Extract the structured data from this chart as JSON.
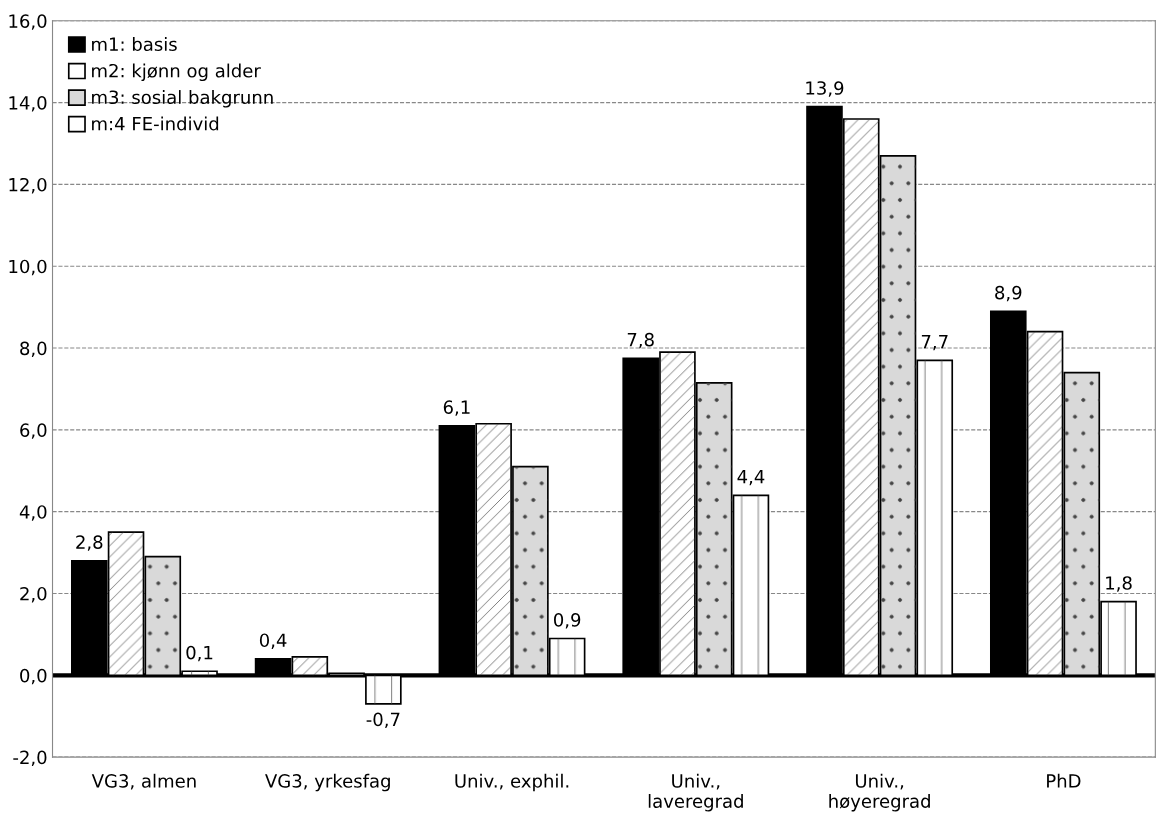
{
  "chart_data": {
    "type": "bar",
    "categories": [
      "VG3, almen",
      "VG3, yrkesfag",
      "Univ., exphil.",
      "Univ.,\nlaveregrad",
      "Univ.,\nhøyeregrad",
      "PhD"
    ],
    "series": [
      {
        "name": "m1: basis",
        "color": "#000000",
        "values": [
          2.8,
          0.4,
          6.1,
          7.75,
          13.9,
          8.9
        ],
        "value_labels": [
          "2,8",
          "0,4",
          "6,1",
          "7,8",
          "13,9",
          "8,9"
        ]
      },
      {
        "name": "m2: kjønn og alder",
        "color": "#ffffff",
        "values": [
          3.5,
          0.45,
          6.15,
          7.9,
          13.6,
          8.4
        ]
      },
      {
        "name": "m3: sosial bakgrunn",
        "color": "#d9d9d9",
        "values": [
          2.9,
          0.05,
          5.1,
          7.15,
          12.7,
          7.4
        ]
      },
      {
        "name": "m:4 FE-individ",
        "color": "#ffffff",
        "values": [
          0.1,
          -0.7,
          0.9,
          4.4,
          7.7,
          1.8
        ],
        "value_labels": [
          "0,1",
          "-0,7",
          "0,9",
          "4,4",
          "7,7",
          "1,8"
        ]
      }
    ],
    "ylim": [
      -2,
      16
    ],
    "yticks": [
      {
        "value": -2,
        "label": "-2,0"
      },
      {
        "value": 0,
        "label": "0,0"
      },
      {
        "value": 2,
        "label": "2,0"
      },
      {
        "value": 4,
        "label": "4,0"
      },
      {
        "value": 6,
        "label": "6,0"
      },
      {
        "value": 8,
        "label": "8,0"
      },
      {
        "value": 10,
        "label": "10,0"
      },
      {
        "value": 12,
        "label": "12,0"
      },
      {
        "value": 14,
        "label": "14,0"
      },
      {
        "value": 16,
        "label": "16,0"
      }
    ],
    "grid": "y",
    "legend": "top left"
  }
}
